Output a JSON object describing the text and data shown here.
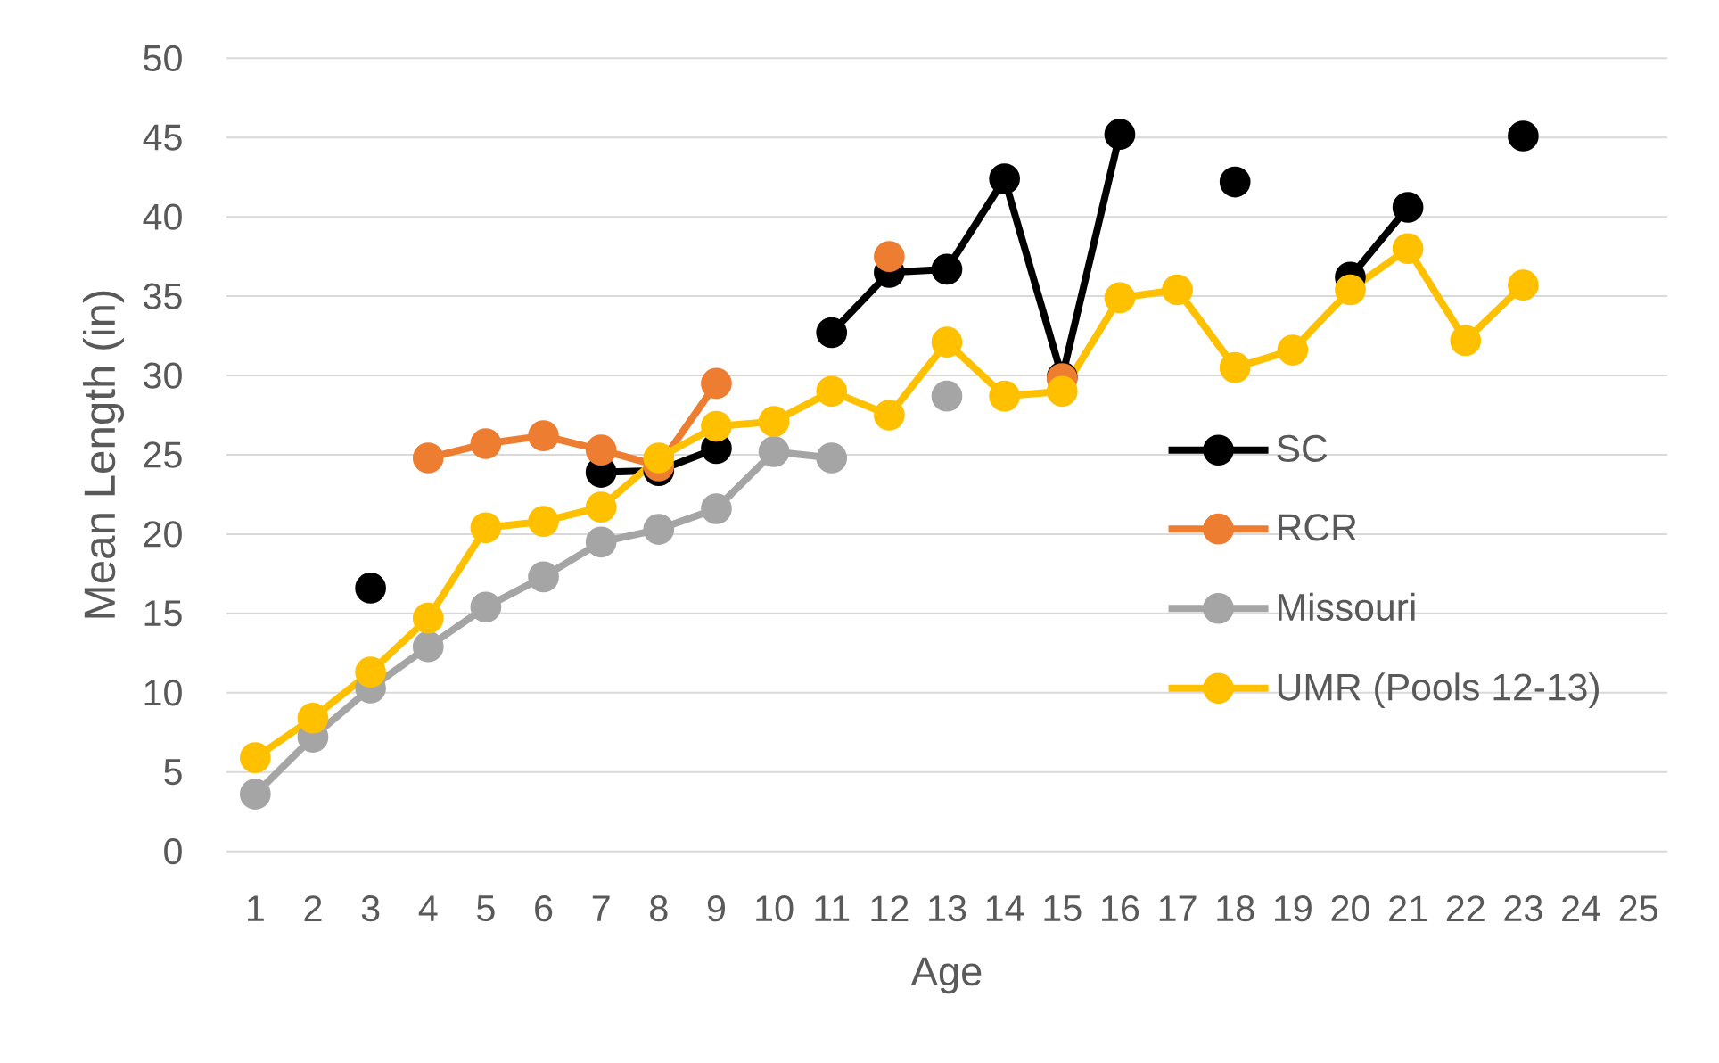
{
  "chart_data": {
    "type": "line",
    "xlabel": "Age",
    "ylabel": "Mean Length (in)",
    "categories": [
      "1",
      "2",
      "3",
      "4",
      "5",
      "6",
      "7",
      "8",
      "9",
      "10",
      "11",
      "12",
      "13",
      "14",
      "15",
      "16",
      "17",
      "18",
      "19",
      "20",
      "21",
      "22",
      "23",
      "24",
      "25"
    ],
    "series": [
      {
        "name": "SC",
        "color": "#000000",
        "values": [
          null,
          null,
          16.6,
          null,
          null,
          null,
          23.9,
          24.0,
          25.4,
          null,
          32.7,
          36.5,
          36.7,
          42.4,
          29.9,
          45.2,
          null,
          42.2,
          null,
          36.2,
          40.6,
          null,
          45.1,
          null,
          null
        ]
      },
      {
        "name": "RCR",
        "color": "#ed7d31",
        "values": [
          null,
          null,
          null,
          24.8,
          25.7,
          26.2,
          25.3,
          24.3,
          29.5,
          null,
          null,
          37.5,
          null,
          null,
          29.8,
          null,
          null,
          null,
          null,
          null,
          null,
          null,
          null,
          null,
          null
        ]
      },
      {
        "name": "Missouri",
        "color": "#a5a5a5",
        "values": [
          3.6,
          7.2,
          10.3,
          12.9,
          15.4,
          17.3,
          19.5,
          20.3,
          21.6,
          25.2,
          24.8,
          null,
          28.7,
          null,
          null,
          null,
          null,
          null,
          null,
          null,
          null,
          null,
          null,
          null,
          null
        ]
      },
      {
        "name": "UMR (Pools 12-13)",
        "color": "#ffc000",
        "values": [
          5.9,
          8.4,
          11.3,
          14.7,
          20.4,
          20.8,
          21.7,
          24.8,
          26.8,
          27.1,
          29.0,
          27.5,
          32.1,
          28.7,
          29.0,
          34.9,
          35.4,
          30.5,
          31.6,
          35.4,
          38.0,
          32.2,
          35.7,
          null,
          null
        ]
      }
    ],
    "ylim": [
      0,
      50
    ],
    "yticks": [
      0,
      5,
      10,
      15,
      20,
      25,
      30,
      35,
      40,
      45,
      50
    ],
    "grid": "y",
    "legend": "right",
    "marker": "circle"
  }
}
